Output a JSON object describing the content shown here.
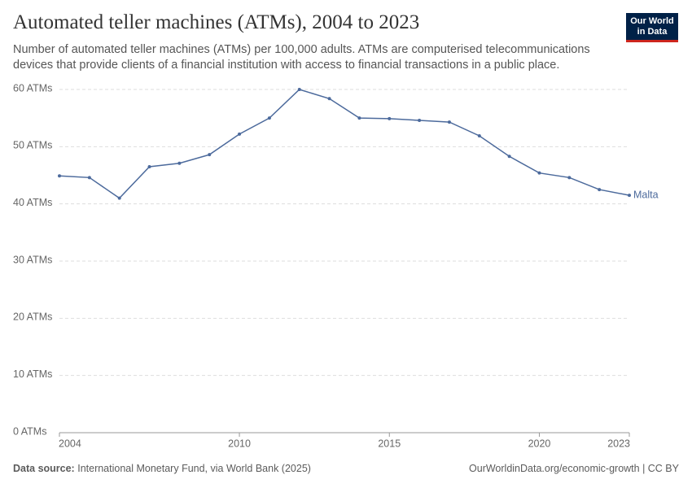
{
  "chart_data": {
    "type": "line",
    "title": "Automated teller machines (ATMs), 2004 to 2023",
    "subtitle": "Number of automated teller machines (ATMs) per 100,000 adults. ATMs are computerised telecommunications devices that provide clients of a financial institution with access to financial transactions in a public place.",
    "logo": [
      "Our World",
      "in Data"
    ],
    "source_label": "Data source:",
    "source": "International Monetary Fund, via World Bank (2025)",
    "footer_right": "OurWorldinData.org/economic-growth | CC BY",
    "x": [
      2004,
      2005,
      2006,
      2007,
      2008,
      2009,
      2010,
      2011,
      2012,
      2013,
      2014,
      2015,
      2016,
      2017,
      2018,
      2019,
      2020,
      2021,
      2022,
      2023
    ],
    "series": [
      {
        "name": "Malta",
        "color": "#4c6a9c",
        "values": [
          44.9,
          44.6,
          41.0,
          46.5,
          47.1,
          48.6,
          52.2,
          55.0,
          60.0,
          58.4,
          55.0,
          54.9,
          54.6,
          54.3,
          51.9,
          48.3,
          45.4,
          44.6,
          42.5,
          41.5
        ]
      }
    ],
    "xlim": [
      2004,
      2023
    ],
    "xticks": [
      2004,
      2010,
      2015,
      2020,
      2023
    ],
    "ylim": [
      0,
      60
    ],
    "yticks": [
      {
        "value": 0,
        "label": "0 ATMs"
      },
      {
        "value": 10,
        "label": "10 ATMs"
      },
      {
        "value": 20,
        "label": "20 ATMs"
      },
      {
        "value": 30,
        "label": "30 ATMs"
      },
      {
        "value": 40,
        "label": "40 ATMs"
      },
      {
        "value": 50,
        "label": "50 ATMs"
      },
      {
        "value": 60,
        "label": "60 ATMs"
      }
    ],
    "grid": true
  }
}
